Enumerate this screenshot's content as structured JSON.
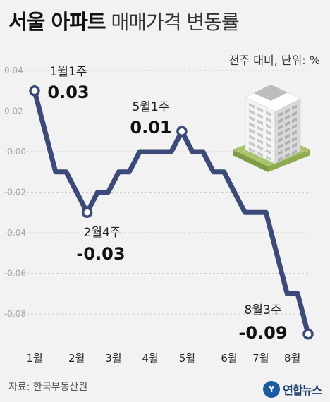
{
  "header": {
    "title_bold": "서울 아파트",
    "title_light": "매매가격 변동률",
    "unit_note": "전주 대비, 단위: %"
  },
  "footer": {
    "source": "자료: 한국부동산원",
    "logo_text": "연합뉴스",
    "logo_mark": "Y"
  },
  "chart_data": {
    "type": "line",
    "title": "서울 아파트 매매가격 변동률",
    "subtitle": "전주 대비, 단위: %",
    "ylim": [
      -0.095,
      0.04
    ],
    "yticks": [
      0.04,
      0.02,
      0.0,
      -0.02,
      -0.04,
      -0.06,
      -0.08
    ],
    "ytick_labels": [
      "0.04",
      "0.02",
      "-0.00",
      "-0.02",
      "-0.04",
      "-0.06",
      "-0.08"
    ],
    "xticks": [
      {
        "label": "1월",
        "index": 0
      },
      {
        "label": "2월",
        "index": 4
      },
      {
        "label": "3월",
        "index": 7.5
      },
      {
        "label": "4월",
        "index": 11
      },
      {
        "label": "5월",
        "index": 14.5
      },
      {
        "label": "6월",
        "index": 18.5
      },
      {
        "label": "7월",
        "index": 21.5
      },
      {
        "label": "8월",
        "index": 24.5
      }
    ],
    "grid": true,
    "series": [
      {
        "name": "",
        "color": "#3b4a78",
        "values": [
          0.03,
          0.01,
          -0.01,
          -0.01,
          -0.02,
          -0.03,
          -0.02,
          -0.02,
          -0.01,
          -0.01,
          0.0,
          0.0,
          0.0,
          0.0,
          0.01,
          0.0,
          0.0,
          -0.01,
          -0.01,
          -0.02,
          -0.03,
          -0.03,
          -0.03,
          -0.05,
          -0.07,
          -0.07,
          -0.09
        ]
      }
    ],
    "annotations": [
      {
        "label": "1월1주",
        "value": "0.03",
        "index": 0
      },
      {
        "label": "2월4주",
        "value": "-0.03",
        "index": 5
      },
      {
        "label": "5월1주",
        "value": "0.01",
        "index": 14
      },
      {
        "label": "8월3주",
        "value": "-0.09",
        "index": 26
      }
    ]
  }
}
